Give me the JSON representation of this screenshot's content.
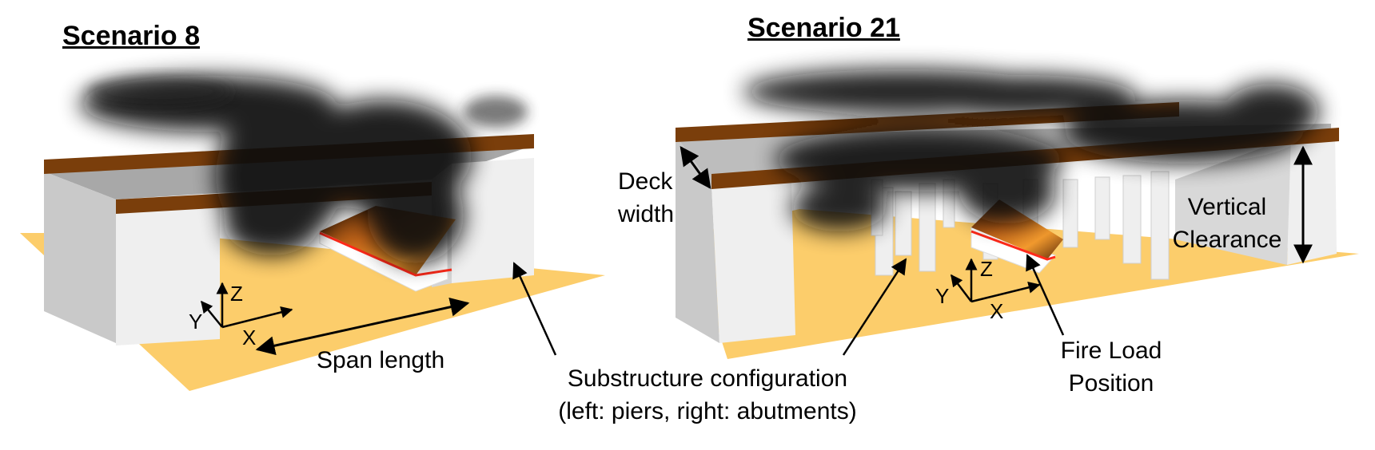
{
  "titles": {
    "left": "Scenario 8",
    "right": "Scenario 21"
  },
  "labels": {
    "span_length": "Span length",
    "deck_width_1": "Deck",
    "deck_width_2": "width",
    "vertical_clearance_1": "Vertical",
    "vertical_clearance_2": "Clearance",
    "fire_load_1": "Fire Load",
    "fire_load_2": "Position",
    "substructure_1": "Substructure configuration",
    "substructure_2": "(left: piers, right: abutments)"
  },
  "axes": {
    "x": "X",
    "y": "Y",
    "z": "Z"
  },
  "colors": {
    "ground": "#fccd6b",
    "deck": "#7a3e0b",
    "abutment": "#efefef",
    "abutment_shade": "#c9c9c9",
    "smoke": "#111111",
    "fire": "#e0781a",
    "fire_edge": "#ff2a1a"
  }
}
